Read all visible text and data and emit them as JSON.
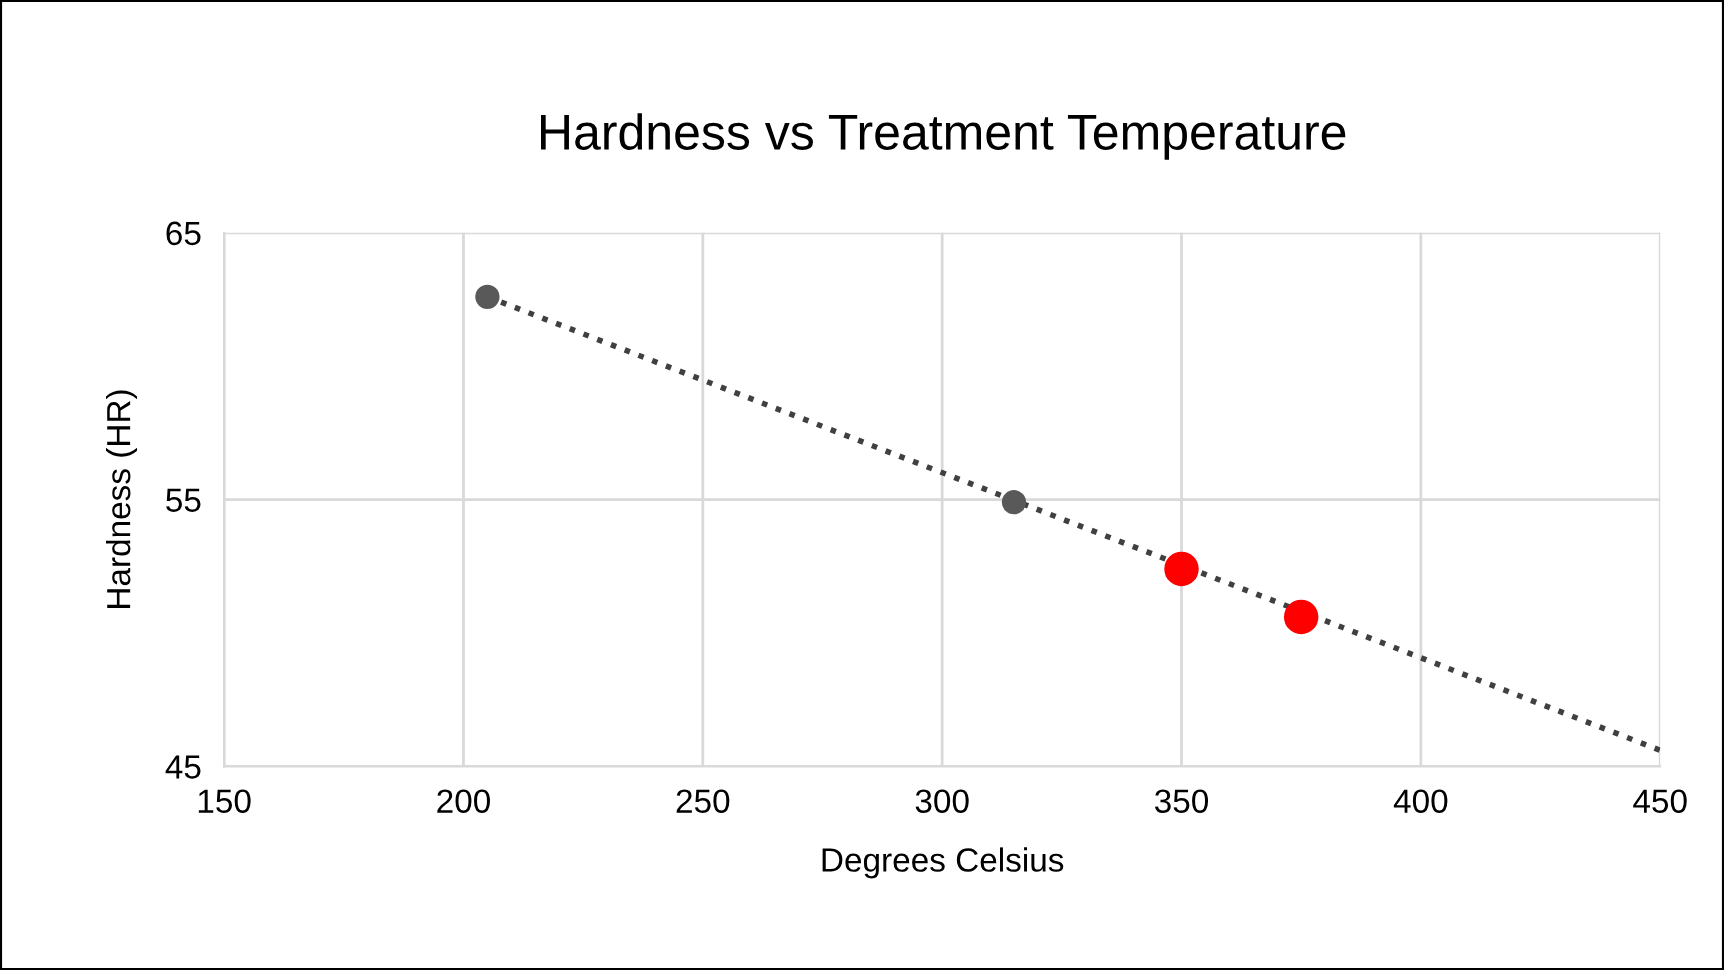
{
  "chart_data": {
    "type": "scatter",
    "title": "Hardness vs Treatment Temperature",
    "xlabel": "Degrees Celsius",
    "ylabel": "Hardness (HR)",
    "series": [
      {
        "type": "line",
        "color": "#404040",
        "x": [
          205,
          450
        ],
        "values": [
          62.6,
          45.6
        ],
        "line_style": "dotted",
        "marker": "none"
      },
      {
        "color": "#595959",
        "x": [
          205,
          315
        ],
        "values": [
          62.6,
          54.9
        ],
        "marker": "circle"
      },
      {
        "color": "#ff0000",
        "x": [
          350,
          375
        ],
        "values": [
          52.4,
          50.6
        ],
        "marker": "circle"
      }
    ],
    "xlim": [
      150,
      450
    ],
    "xticks": [
      150,
      200,
      250,
      300,
      350,
      400,
      450
    ],
    "ylim": [
      45,
      65
    ],
    "yticks": [
      45,
      55,
      65
    ],
    "grid": true,
    "legend": false
  }
}
